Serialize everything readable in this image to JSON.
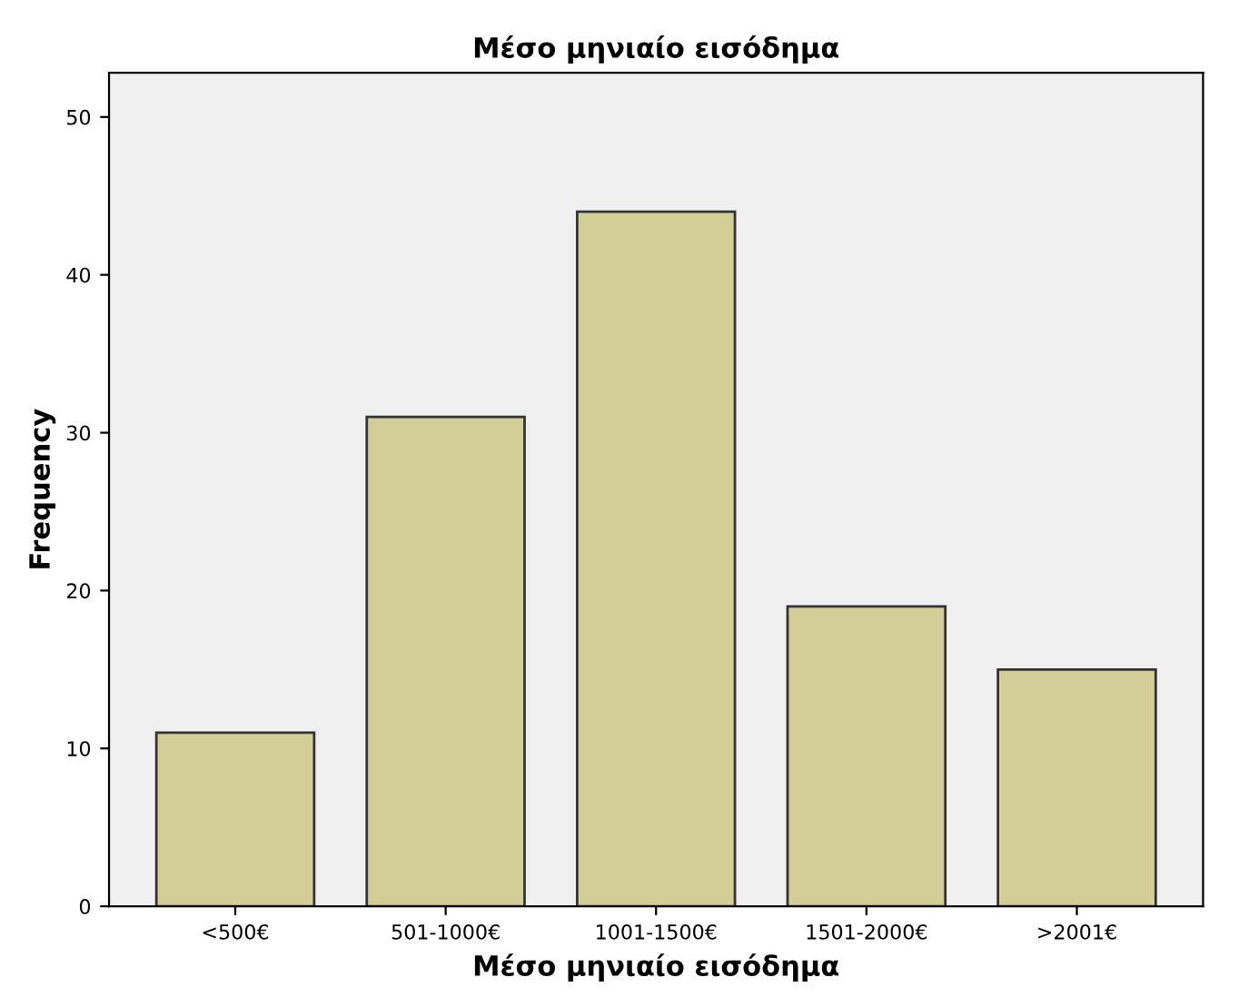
{
  "chart_data": {
    "type": "bar",
    "title": "Μέσο μηνιαίο εισόδημα",
    "xlabel": "Μέσο μηνιαίο εισόδημα",
    "ylabel": "Frequency",
    "categories": [
      "<500€",
      "501-1000€",
      "1001-1500€",
      "1501-2000€",
      ">2001€"
    ],
    "values": [
      11,
      31,
      44,
      19,
      15
    ],
    "color": "#d3ce97",
    "ylim": [
      0,
      52.8
    ],
    "yticks": [
      0,
      10,
      20,
      30,
      40,
      50
    ],
    "grid": false,
    "legend": false
  }
}
